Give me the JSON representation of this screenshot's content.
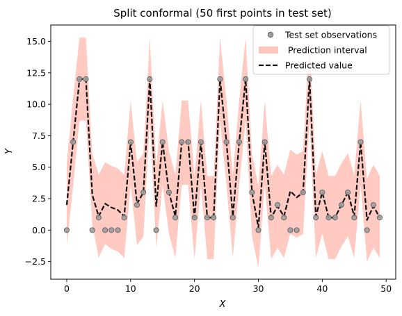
{
  "chart_data": {
    "type": "line",
    "title": "Split conformal (50 first points in test set)",
    "xlabel": "X",
    "ylabel": "Y",
    "xlim": [
      -2.5,
      51.5
    ],
    "ylim": [
      -3.9,
      16.3
    ],
    "xticks": [
      0,
      10,
      20,
      30,
      40,
      50
    ],
    "yticks": [
      -2.5,
      0.0,
      2.5,
      5.0,
      7.5,
      10.0,
      12.5,
      15.0
    ],
    "xtick_labels": [
      "0",
      "10",
      "20",
      "30",
      "40",
      "50"
    ],
    "ytick_labels": [
      "−2.5",
      "0.0",
      "2.5",
      "5.0",
      "7.5",
      "10.0",
      "12.5",
      "15.0"
    ],
    "legend_placement": "upper-right",
    "grid": false,
    "colors": {
      "observations_fill": "#9e9e9e",
      "observations_edge": "#555555",
      "interval_fill": "#ffb3a8",
      "predicted_line": "#111111"
    },
    "series": [
      {
        "name": "Test set observations",
        "kind": "scatter",
        "x": [
          0,
          1,
          2,
          3,
          4,
          5,
          6,
          7,
          8,
          9,
          10,
          11,
          12,
          13,
          14,
          15,
          16,
          17,
          18,
          19,
          20,
          21,
          22,
          23,
          24,
          25,
          26,
          27,
          28,
          29,
          30,
          31,
          32,
          33,
          34,
          35,
          36,
          37,
          38,
          39,
          40,
          41,
          42,
          43,
          44,
          45,
          46,
          47,
          48,
          49
        ],
        "y": [
          0,
          7,
          12,
          12,
          0,
          1,
          0,
          0,
          0,
          1,
          7,
          2,
          3,
          12,
          0,
          7,
          3,
          1,
          7,
          7,
          1,
          7,
          1,
          1,
          12,
          7,
          1,
          7,
          12,
          3,
          0,
          7,
          1,
          2,
          1,
          0,
          0,
          3,
          12,
          1,
          3,
          1,
          1,
          2,
          3,
          1,
          7,
          0,
          2,
          1
        ]
      },
      {
        "name": " Prediction interval",
        "kind": "band",
        "x": [
          0,
          1,
          2,
          3,
          4,
          5,
          6,
          7,
          8,
          9,
          10,
          11,
          12,
          13,
          14,
          15,
          16,
          17,
          18,
          19,
          20,
          21,
          22,
          23,
          24,
          25,
          26,
          27,
          28,
          29,
          30,
          31,
          32,
          33,
          34,
          35,
          36,
          37,
          38,
          39,
          40,
          41,
          42,
          43,
          44,
          45,
          46,
          47,
          48,
          49
        ],
        "lower": [
          -1.2,
          3.5,
          8.7,
          8.7,
          0.5,
          -2.2,
          -1.1,
          -1.5,
          -1.7,
          -2.2,
          3.6,
          -1.2,
          -0.5,
          8.7,
          -1.4,
          3.6,
          -0.3,
          -2.2,
          3.6,
          3.6,
          -2.3,
          3.6,
          -2.3,
          -2.3,
          8.7,
          3.6,
          -2.2,
          3.6,
          8.7,
          -0.5,
          -3.0,
          3.6,
          -2.3,
          -1.4,
          -2.2,
          -0.3,
          -0.6,
          -0.3,
          8.7,
          -2.2,
          -0.3,
          -2.3,
          -2.3,
          -1.3,
          -0.5,
          -2.2,
          3.6,
          -2.5,
          -1.4,
          -2.2
        ],
        "upper": [
          5.3,
          10.5,
          15.3,
          15.3,
          6.1,
          4.4,
          5.4,
          5.1,
          4.9,
          4.4,
          10.3,
          5.4,
          6.1,
          15.3,
          5.1,
          10.3,
          6.3,
          4.4,
          10.3,
          10.3,
          4.3,
          10.3,
          4.3,
          4.3,
          15.3,
          10.3,
          4.4,
          10.3,
          15.3,
          6.1,
          3.5,
          10.3,
          4.3,
          5.2,
          4.4,
          6.4,
          6.0,
          6.3,
          15.3,
          4.4,
          6.3,
          4.3,
          4.3,
          5.3,
          6.1,
          4.4,
          10.3,
          4.1,
          5.2,
          4.3
        ]
      },
      {
        "name": "Predicted value",
        "kind": "line",
        "x": [
          0,
          1,
          2,
          3,
          4,
          5,
          6,
          7,
          8,
          9,
          10,
          11,
          12,
          13,
          14,
          15,
          16,
          17,
          18,
          19,
          20,
          21,
          22,
          23,
          24,
          25,
          26,
          27,
          28,
          29,
          30,
          31,
          32,
          33,
          34,
          35,
          36,
          37,
          38,
          39,
          40,
          41,
          42,
          43,
          44,
          45,
          46,
          47,
          48,
          49
        ],
        "y": [
          2.0,
          7.0,
          12.0,
          12.0,
          2.8,
          1.1,
          2.1,
          1.8,
          1.6,
          1.1,
          7.0,
          2.1,
          3.0,
          12.0,
          1.9,
          7.0,
          3.0,
          1.1,
          7.0,
          7.0,
          1.0,
          7.0,
          1.0,
          1.0,
          12.0,
          7.0,
          1.1,
          7.0,
          12.0,
          3.0,
          0.2,
          7.0,
          1.0,
          1.9,
          1.1,
          3.1,
          2.6,
          3.0,
          12.0,
          1.1,
          3.0,
          1.0,
          1.0,
          2.0,
          3.0,
          1.1,
          7.0,
          0.8,
          1.9,
          1.0
        ]
      }
    ]
  }
}
